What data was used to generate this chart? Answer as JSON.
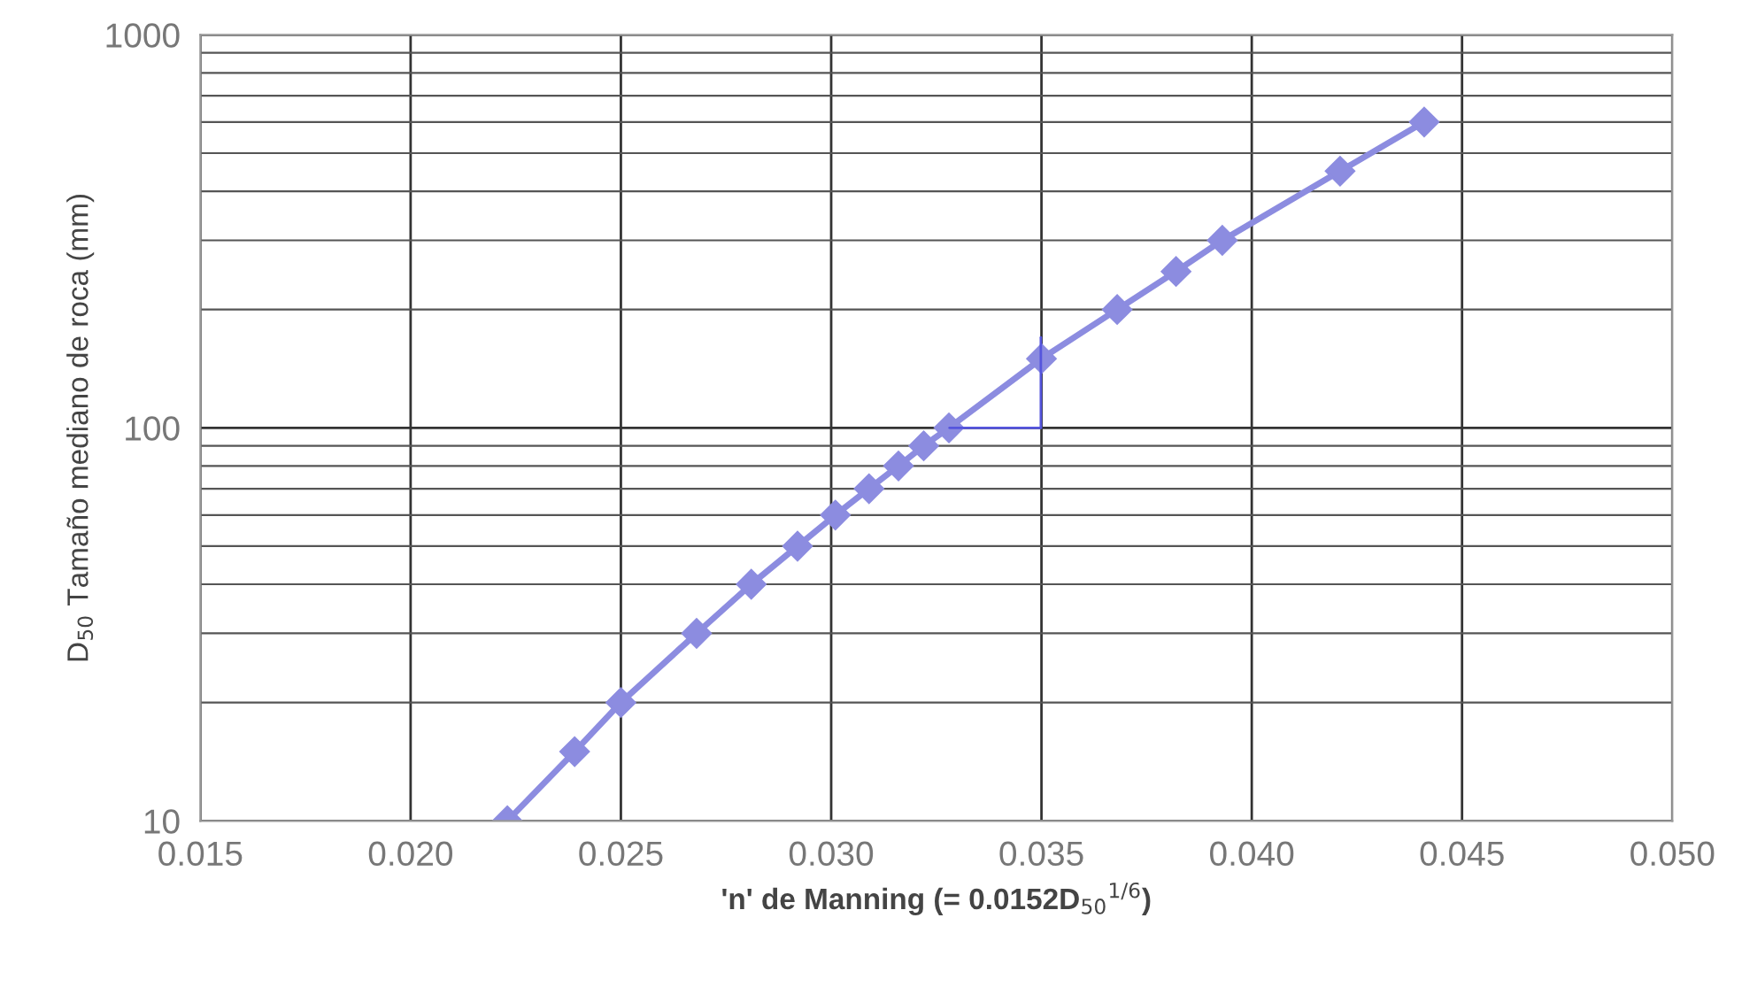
{
  "chart_data": {
    "type": "line",
    "xlabel": "'n' de Manning (= 0.0152D$_{50}$$^{1/6}$)",
    "ylabel": "D$_{50}$ Tamaño mediano de roca (mm)",
    "series": [
      {
        "color": "#8c8ce0",
        "x": [
          0.0223,
          0.0239,
          0.025,
          0.0268,
          0.0281,
          0.0292,
          0.0301,
          0.0309,
          0.0316,
          0.0322,
          0.0328,
          0.035,
          0.0368,
          0.0382,
          0.0393,
          0.0421,
          0.0441
        ],
        "values": [
          10,
          15,
          20,
          30,
          40,
          50,
          60,
          70,
          80,
          90,
          100,
          150,
          200,
          250,
          300,
          450,
          600
        ]
      }
    ],
    "log": "y",
    "xlim": [
      0.015,
      0.05
    ],
    "ylim": [
      10,
      1000
    ],
    "xticks": [
      {
        "value": 0.015,
        "label": "0.015"
      },
      {
        "value": 0.02,
        "label": "0.020"
      },
      {
        "value": 0.025,
        "label": "0.025"
      },
      {
        "value": 0.03,
        "label": "0.030"
      },
      {
        "value": 0.035,
        "label": "0.035"
      },
      {
        "value": 0.04,
        "label": "0.040"
      },
      {
        "value": 0.045,
        "label": "0.045"
      },
      {
        "value": 0.05,
        "label": "0.050"
      }
    ],
    "yticks": [
      10,
      100,
      1000
    ],
    "grid": true,
    "marker": "diamond",
    "line_style": "solid"
  }
}
